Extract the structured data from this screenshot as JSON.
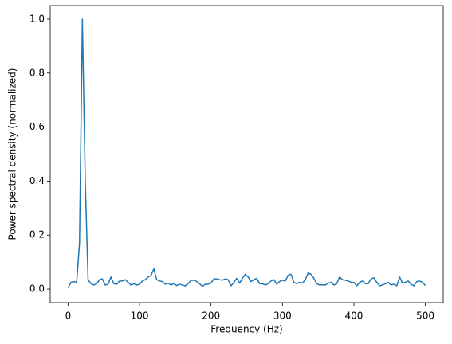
{
  "chart_data": {
    "type": "line",
    "xlabel": "Frequency (Hz)",
    "ylabel": "Power spectral density (normalized)",
    "x": [
      0,
      4,
      8,
      12,
      16,
      20,
      24,
      28,
      32,
      36,
      40,
      44,
      48,
      52,
      56,
      60,
      64,
      68,
      72,
      76,
      80,
      84,
      88,
      92,
      96,
      100,
      104,
      108,
      112,
      116,
      120,
      124,
      128,
      132,
      136,
      140,
      144,
      148,
      152,
      156,
      160,
      164,
      168,
      172,
      176,
      180,
      184,
      188,
      192,
      196,
      200,
      204,
      208,
      212,
      216,
      220,
      224,
      228,
      232,
      236,
      240,
      244,
      248,
      252,
      256,
      260,
      264,
      268,
      272,
      276,
      280,
      284,
      288,
      292,
      296,
      300,
      304,
      308,
      312,
      316,
      320,
      324,
      328,
      332,
      336,
      340,
      344,
      348,
      352,
      356,
      360,
      364,
      368,
      372,
      376,
      380,
      384,
      388,
      392,
      396,
      400,
      404,
      408,
      412,
      416,
      420,
      424,
      428,
      432,
      436,
      440,
      444,
      448,
      452,
      456,
      460,
      464,
      468,
      472,
      476,
      480,
      484,
      488,
      492,
      496,
      500
    ],
    "series": [
      {
        "color": "#1f77b4",
        "values": [
          0.005,
          0.025,
          0.028,
          0.025,
          0.17,
          1.0,
          0.4,
          0.035,
          0.02,
          0.015,
          0.02,
          0.035,
          0.038,
          0.015,
          0.018,
          0.045,
          0.02,
          0.018,
          0.03,
          0.03,
          0.035,
          0.025,
          0.015,
          0.02,
          0.015,
          0.018,
          0.03,
          0.035,
          0.045,
          0.05,
          0.075,
          0.035,
          0.03,
          0.028,
          0.018,
          0.022,
          0.015,
          0.02,
          0.013,
          0.018,
          0.015,
          0.012,
          0.02,
          0.032,
          0.033,
          0.028,
          0.02,
          0.01,
          0.018,
          0.018,
          0.022,
          0.038,
          0.038,
          0.035,
          0.033,
          0.038,
          0.035,
          0.012,
          0.025,
          0.04,
          0.022,
          0.04,
          0.055,
          0.045,
          0.028,
          0.035,
          0.04,
          0.02,
          0.02,
          0.015,
          0.02,
          0.03,
          0.035,
          0.018,
          0.028,
          0.033,
          0.03,
          0.052,
          0.055,
          0.025,
          0.02,
          0.025,
          0.022,
          0.035,
          0.06,
          0.055,
          0.04,
          0.02,
          0.015,
          0.016,
          0.015,
          0.022,
          0.025,
          0.015,
          0.02,
          0.045,
          0.035,
          0.033,
          0.03,
          0.025,
          0.025,
          0.012,
          0.025,
          0.03,
          0.02,
          0.02,
          0.038,
          0.042,
          0.025,
          0.012,
          0.015,
          0.02,
          0.025,
          0.015,
          0.018,
          0.012,
          0.045,
          0.022,
          0.025,
          0.03,
          0.018,
          0.012,
          0.028,
          0.03,
          0.025,
          0.013
        ]
      }
    ],
    "xlim": [
      -25,
      525
    ],
    "xticks": [
      0,
      100,
      200,
      300,
      400,
      500
    ],
    "ylim": [
      -0.05,
      1.05
    ],
    "yticks": [
      {
        "value": 0,
        "label": "0.0"
      },
      {
        "value": 0.2,
        "label": "0.2"
      },
      {
        "value": 0.4,
        "label": "0.4"
      },
      {
        "value": 0.6,
        "label": "0.6"
      },
      {
        "value": 0.8,
        "label": "0.8"
      },
      {
        "value": 1,
        "label": "1.0"
      }
    ],
    "grid": false
  }
}
